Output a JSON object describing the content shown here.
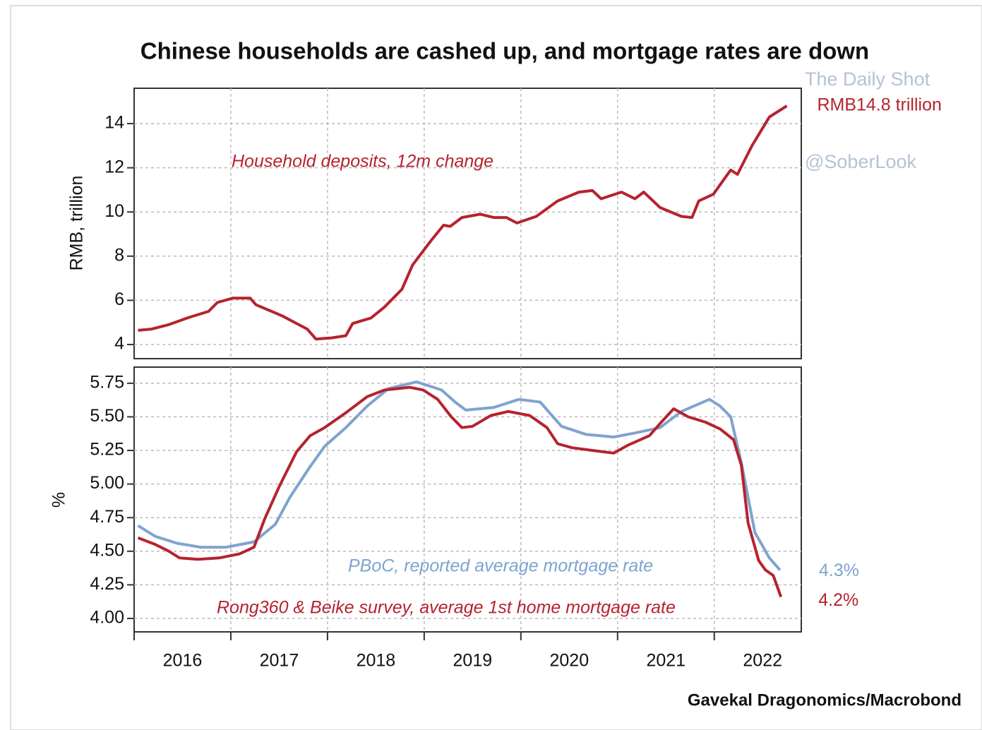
{
  "title": "Chinese households are cashed up, and mortgage rates are down",
  "source": "Gavekal Dragonomics/Macrobond",
  "watermark": [
    "The Daily Shot",
    "@SoberLook"
  ],
  "chart_data": [
    {
      "type": "line",
      "ylabel": "RMB, trillion",
      "xlim": [
        2016,
        2022.9
      ],
      "xticks": [
        2016,
        2017,
        2018,
        2019,
        2020,
        2021,
        2022
      ],
      "xtick_labels": false,
      "ylim": [
        3.36,
        15.6
      ],
      "yticks": [
        4,
        6,
        8,
        10,
        12,
        14
      ],
      "grid": true,
      "series": [
        {
          "name": "Household deposits, 12m change",
          "color": "#b5232f",
          "end_label": "RMB14.8 trillion",
          "x": [
            2016.04,
            2016.18,
            2016.36,
            2016.55,
            2016.77,
            2016.86,
            2017.02,
            2017.2,
            2017.26,
            2017.53,
            2017.79,
            2017.88,
            2018.04,
            2018.19,
            2018.26,
            2018.45,
            2018.59,
            2018.77,
            2018.88,
            2019.07,
            2019.2,
            2019.27,
            2019.39,
            2019.58,
            2019.72,
            2019.85,
            2019.96,
            2020.16,
            2020.38,
            2020.6,
            2020.74,
            2020.83,
            2021.04,
            2021.18,
            2021.27,
            2021.44,
            2021.66,
            2021.77,
            2021.84,
            2021.99,
            2022.17,
            2022.24,
            2022.39,
            2022.57,
            2022.75
          ],
          "values": [
            4.64,
            4.7,
            4.9,
            5.2,
            5.5,
            5.9,
            6.1,
            6.1,
            5.8,
            5.3,
            4.7,
            4.25,
            4.3,
            4.4,
            4.95,
            5.2,
            5.7,
            6.5,
            7.6,
            8.7,
            9.4,
            9.35,
            9.75,
            9.9,
            9.75,
            9.75,
            9.5,
            9.8,
            10.5,
            10.9,
            10.97,
            10.6,
            10.9,
            10.6,
            10.9,
            10.2,
            9.8,
            9.75,
            10.5,
            10.8,
            11.9,
            11.7,
            13.0,
            14.3,
            14.8
          ]
        }
      ]
    },
    {
      "type": "line",
      "ylabel": "%",
      "xlim": [
        2016,
        2022.9
      ],
      "xticks": [
        2016,
        2017,
        2018,
        2019,
        2020,
        2021,
        2022
      ],
      "xtick_labels": true,
      "ylim": [
        3.9,
        5.87
      ],
      "yticks": [
        {
          "value": 4,
          "label": "4.00"
        },
        4.25,
        {
          "value": 4.5,
          "label": "4.50"
        },
        4.75,
        {
          "value": 5,
          "label": "5.00"
        },
        5.25,
        {
          "value": 5.5,
          "label": "5.50"
        },
        5.75
      ],
      "grid": true,
      "series": [
        {
          "name": "PBoC, reported average mortgage rate",
          "color": "#7fa3cf",
          "end_label": "4.3%",
          "x": [
            2016.04,
            2016.22,
            2016.44,
            2016.69,
            2016.95,
            2017.24,
            2017.46,
            2017.61,
            2017.82,
            2017.97,
            2018.19,
            2018.41,
            2018.63,
            2018.92,
            2019.18,
            2019.32,
            2019.43,
            2019.72,
            2019.98,
            2020.2,
            2020.42,
            2020.67,
            2020.96,
            2021.18,
            2021.44,
            2021.66,
            2021.95,
            2022.06,
            2022.17,
            2022.28,
            2022.42,
            2022.57,
            2022.68
          ],
          "values": [
            4.69,
            4.61,
            4.56,
            4.53,
            4.53,
            4.57,
            4.7,
            4.9,
            5.13,
            5.28,
            5.42,
            5.58,
            5.71,
            5.76,
            5.7,
            5.61,
            5.55,
            5.57,
            5.63,
            5.61,
            5.43,
            5.37,
            5.35,
            5.38,
            5.42,
            5.54,
            5.63,
            5.58,
            5.5,
            5.16,
            4.64,
            4.45,
            4.36
          ]
        },
        {
          "name": "Rong360 & Beike survey, average 1st home mortgage rate",
          "color": "#b5232f",
          "end_label": "4.2%",
          "x": [
            2016.04,
            2016.22,
            2016.36,
            2016.47,
            2016.66,
            2016.88,
            2017.09,
            2017.24,
            2017.35,
            2017.5,
            2017.68,
            2017.82,
            2017.97,
            2018.19,
            2018.41,
            2018.59,
            2018.85,
            2018.99,
            2019.14,
            2019.28,
            2019.39,
            2019.5,
            2019.69,
            2019.87,
            2020.09,
            2020.27,
            2020.38,
            2020.53,
            2020.74,
            2020.96,
            2021.11,
            2021.33,
            2021.44,
            2021.58,
            2021.73,
            2021.91,
            2022.06,
            2022.2,
            2022.28,
            2022.35,
            2022.46,
            2022.53,
            2022.61,
            2022.69
          ],
          "values": [
            4.6,
            4.55,
            4.5,
            4.45,
            4.44,
            4.45,
            4.48,
            4.53,
            4.74,
            4.98,
            5.24,
            5.36,
            5.42,
            5.53,
            5.65,
            5.7,
            5.72,
            5.7,
            5.63,
            5.5,
            5.42,
            5.43,
            5.51,
            5.54,
            5.51,
            5.42,
            5.3,
            5.27,
            5.25,
            5.23,
            5.29,
            5.36,
            5.45,
            5.56,
            5.5,
            5.46,
            5.41,
            5.33,
            5.14,
            4.71,
            4.43,
            4.36,
            4.32,
            4.16
          ]
        }
      ]
    }
  ]
}
